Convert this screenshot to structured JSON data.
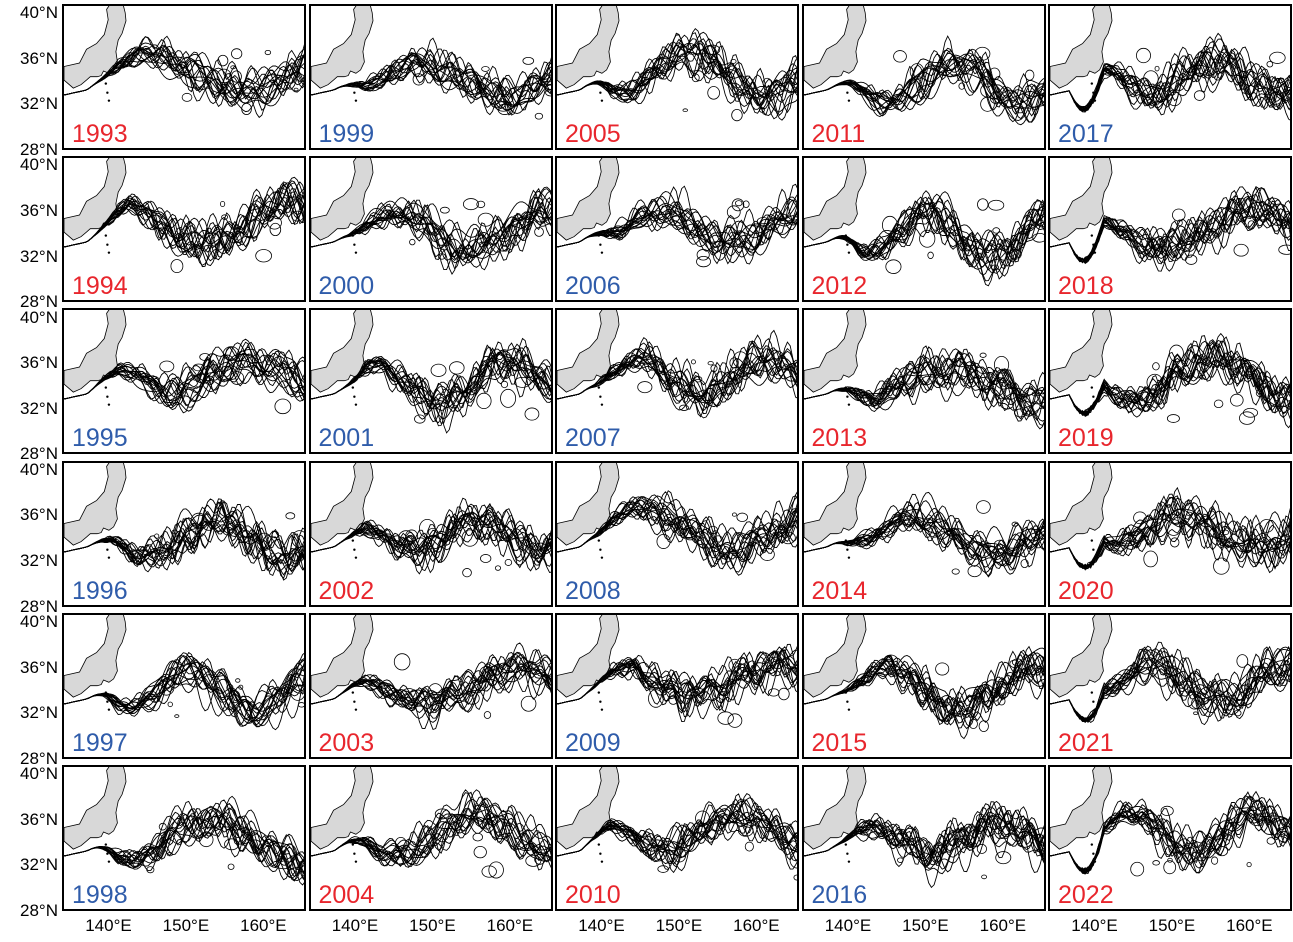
{
  "colors": {
    "red": "#e8262d",
    "blue": "#2f5caa",
    "land": "#d8d8d8",
    "path": "#000000"
  },
  "y_axis_labels": [
    "40°N",
    "36°N",
    "32°N",
    "28°N"
  ],
  "x_axis_labels": [
    "140°E",
    "150°E",
    "160°E"
  ],
  "panels": [
    {
      "year": "1993",
      "color": "red"
    },
    {
      "year": "1999",
      "color": "blue"
    },
    {
      "year": "2005",
      "color": "red"
    },
    {
      "year": "2011",
      "color": "red"
    },
    {
      "year": "2017",
      "color": "blue"
    },
    {
      "year": "1994",
      "color": "red"
    },
    {
      "year": "2000",
      "color": "blue"
    },
    {
      "year": "2006",
      "color": "blue"
    },
    {
      "year": "2012",
      "color": "red"
    },
    {
      "year": "2018",
      "color": "red"
    },
    {
      "year": "1995",
      "color": "blue"
    },
    {
      "year": "2001",
      "color": "blue"
    },
    {
      "year": "2007",
      "color": "blue"
    },
    {
      "year": "2013",
      "color": "red"
    },
    {
      "year": "2019",
      "color": "red"
    },
    {
      "year": "1996",
      "color": "blue"
    },
    {
      "year": "2002",
      "color": "red"
    },
    {
      "year": "2008",
      "color": "blue"
    },
    {
      "year": "2014",
      "color": "red"
    },
    {
      "year": "2020",
      "color": "red"
    },
    {
      "year": "1997",
      "color": "blue"
    },
    {
      "year": "2003",
      "color": "red"
    },
    {
      "year": "2009",
      "color": "blue"
    },
    {
      "year": "2015",
      "color": "red"
    },
    {
      "year": "2021",
      "color": "red"
    },
    {
      "year": "1998",
      "color": "blue"
    },
    {
      "year": "2004",
      "color": "red"
    },
    {
      "year": "2010",
      "color": "red"
    },
    {
      "year": "2016",
      "color": "blue"
    },
    {
      "year": "2022",
      "color": "red"
    }
  ]
}
